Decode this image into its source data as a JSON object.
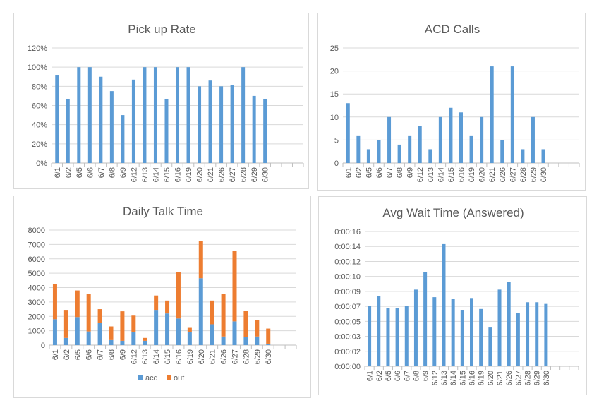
{
  "colors": {
    "primary": "#5b9bd5",
    "secondary": "#ed7d31",
    "grid": "#d9d9d9",
    "text": "#595959"
  },
  "chart_data": [
    {
      "type": "bar",
      "title": "Pick up Rate",
      "categories": [
        "6/1",
        "6/2",
        "6/5",
        "6/6",
        "6/7",
        "6/8",
        "6/9",
        "6/12",
        "6/13",
        "6/14",
        "6/15",
        "6/16",
        "6/19",
        "6/20",
        "6/21",
        "6/26",
        "6/27",
        "6/28",
        "6/29",
        "6/30"
      ],
      "values": [
        92,
        67,
        100,
        100,
        90,
        75,
        50,
        87,
        100,
        100,
        67,
        100,
        100,
        80,
        86,
        80,
        81,
        100,
        70,
        67
      ],
      "ylim": [
        0,
        120
      ],
      "yticks": [
        "0%",
        "20%",
        "40%",
        "60%",
        "80%",
        "100%",
        "120%"
      ],
      "empty_slots": 3,
      "grid": true
    },
    {
      "type": "bar",
      "title": "ACD Calls",
      "categories": [
        "6/1",
        "6/2",
        "6/5",
        "6/6",
        "6/7",
        "6/8",
        "6/9",
        "6/12",
        "6/13",
        "6/14",
        "6/15",
        "6/16",
        "6/19",
        "6/20",
        "6/21",
        "6/26",
        "6/27",
        "6/28",
        "6/29",
        "6/30"
      ],
      "values": [
        13,
        6,
        3,
        5,
        10,
        4,
        6,
        8,
        3,
        10,
        12,
        11,
        6,
        10,
        21,
        5,
        21,
        3,
        10,
        3
      ],
      "ylim": [
        0,
        25
      ],
      "yticks": [
        "0",
        "5",
        "10",
        "15",
        "20",
        "25"
      ],
      "empty_slots": 3,
      "grid": true
    },
    {
      "type": "bar",
      "stacked": true,
      "title": "Daily Talk Time",
      "categories": [
        "6/1",
        "6/2",
        "6/5",
        "6/6",
        "6/7",
        "6/8",
        "6/9",
        "6/12",
        "6/13",
        "6/14",
        "6/15",
        "6/16",
        "6/19",
        "6/20",
        "6/21",
        "6/26",
        "6/27",
        "6/28",
        "6/29",
        "6/30"
      ],
      "series": [
        {
          "name": "acd",
          "values": [
            1800,
            500,
            1950,
            950,
            1550,
            350,
            300,
            900,
            300,
            2450,
            2200,
            1850,
            900,
            4650,
            1450,
            600,
            1650,
            550,
            600,
            100
          ]
        },
        {
          "name": "out",
          "values": [
            2450,
            1950,
            1850,
            2600,
            950,
            950,
            2050,
            1150,
            200,
            1000,
            900,
            3250,
            300,
            2600,
            1650,
            2950,
            4900,
            1850,
            1150,
            1050
          ]
        }
      ],
      "ylim": [
        0,
        8000
      ],
      "yticks": [
        "0",
        "1000",
        "2000",
        "3000",
        "4000",
        "5000",
        "6000",
        "7000",
        "8000"
      ],
      "empty_slots": 2,
      "legend": "bottom",
      "grid": true
    },
    {
      "type": "bar",
      "title": "Avg Wait Time (Answered)",
      "categories": [
        "6/1",
        "6/2",
        "6/5",
        "6/6",
        "6/7",
        "6/8",
        "6/9",
        "6/12",
        "6/13",
        "6/14",
        "6/15",
        "6/16",
        "6/19",
        "6/20",
        "6/21",
        "6/26",
        "6/27",
        "6/28",
        "6/29",
        "6/30"
      ],
      "values": [
        7.2,
        8.3,
        6.9,
        6.9,
        7.2,
        9.1,
        11.2,
        8.2,
        14.5,
        8.0,
        6.7,
        8.1,
        6.8,
        4.6,
        9.1,
        10.0,
        6.3,
        7.6,
        7.6,
        7.4
      ],
      "value_unit": "seconds",
      "ylim": [
        0,
        16
      ],
      "yticks": [
        "0:00:00",
        "0:00:02",
        "0:00:03",
        "0:00:05",
        "0:00:07",
        "0:00:09",
        "0:00:10",
        "0:00:12",
        "0:00:14",
        "0:00:16"
      ],
      "empty_slots": 3,
      "grid": true
    }
  ]
}
